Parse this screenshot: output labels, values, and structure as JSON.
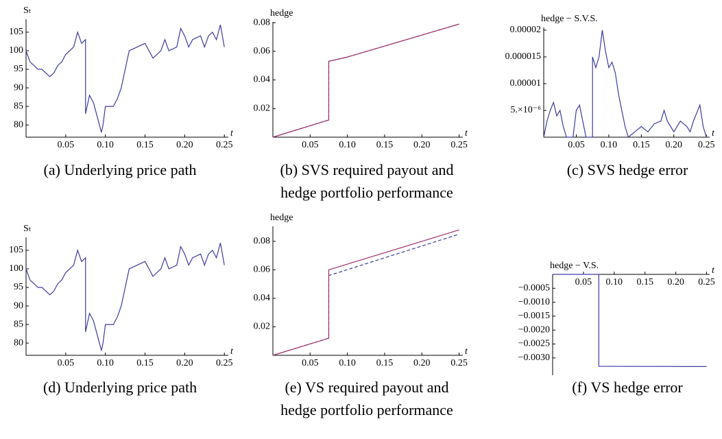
{
  "chart_data": [
    {
      "type": "line",
      "y_label": "Sₜ",
      "x_label": "t",
      "caption": [
        "(a) Underlying price path"
      ],
      "xlim": [
        0,
        0.255
      ],
      "ylim": [
        76.7,
        108.5
      ],
      "xticks": [
        0.05,
        {
          "value": 0.1,
          "label": "0.10"
        },
        0.15,
        {
          "value": 0.2,
          "label": "0.20"
        },
        0.25
      ],
      "yticks": [
        80,
        85,
        90,
        95,
        100,
        105
      ],
      "x": [
        0,
        0.005,
        0.01,
        0.015,
        0.02,
        0.025,
        0.03,
        0.035,
        0.04,
        0.045,
        0.05,
        0.055,
        0.06,
        0.065,
        0.07,
        0.075,
        0.075,
        0.08,
        0.085,
        0.09,
        0.095,
        0.097,
        0.1,
        0.11,
        0.115,
        0.12,
        0.125,
        0.13,
        0.14,
        0.15,
        0.16,
        0.17,
        0.175,
        0.18,
        0.19,
        0.195,
        0.2,
        0.205,
        0.21,
        0.22,
        0.225,
        0.23,
        0.235,
        0.24,
        0.245,
        0.25
      ],
      "series": [
        {
          "color": "#3a3aa0",
          "values": [
            100,
            97,
            96,
            95,
            95,
            94,
            93,
            94,
            96,
            97,
            99,
            100,
            101,
            105,
            102,
            103,
            83,
            88,
            86,
            82,
            78,
            80,
            85,
            85,
            87,
            90,
            95,
            100,
            101,
            102,
            98,
            100,
            103,
            100,
            101,
            106,
            104,
            101,
            103,
            104,
            101,
            104,
            105,
            103,
            107,
            101
          ]
        }
      ]
    },
    {
      "type": "line",
      "y_label": "hedge",
      "x_label": "t",
      "caption": [
        "(b) SVS required payout and",
        "hedge portfolio performance"
      ],
      "xlim": [
        0,
        0.255
      ],
      "ylim": [
        0,
        0.0805
      ],
      "xticks": [
        0.05,
        {
          "value": 0.1,
          "label": "0.10"
        },
        0.15,
        {
          "value": 0.2,
          "label": "0.20"
        },
        0.25
      ],
      "yticks": [
        0.02,
        0.04,
        0.06,
        0.08
      ],
      "x": [
        0,
        0.075,
        0.075,
        0.1,
        0.25
      ],
      "series": [
        {
          "color": "#3a3aa0",
          "style": "dashed",
          "values": [
            0,
            0.012,
            0.053,
            0.056,
            0.079
          ]
        },
        {
          "color": "#a0306a",
          "style": "solid",
          "values": [
            0,
            0.012,
            0.053,
            0.056,
            0.079
          ]
        }
      ]
    },
    {
      "type": "line",
      "y_label": "hedge − S.V.S.",
      "x_label": "t",
      "caption": [
        "(c) SVS hedge error"
      ],
      "xlim": [
        0,
        0.255
      ],
      "ylim": [
        0,
        2.05e-05
      ],
      "xticks": [
        0.05,
        {
          "value": 0.1,
          "label": "0.10"
        },
        0.15,
        {
          "value": 0.2,
          "label": "0.20"
        },
        0.25
      ],
      "yticks": [
        {
          "value": 5e-06,
          "label": "5.×10⁻⁶"
        },
        1e-05,
        1.5e-05,
        2e-05
      ],
      "x": [
        0,
        0.005,
        0.01,
        0.015,
        0.02,
        0.025,
        0.03,
        0.035,
        0.045,
        0.05,
        0.055,
        0.06,
        0.065,
        0.075,
        0.075,
        0.08,
        0.085,
        0.09,
        0.095,
        0.1,
        0.105,
        0.11,
        0.115,
        0.12,
        0.125,
        0.13,
        0.14,
        0.15,
        0.16,
        0.17,
        0.18,
        0.185,
        0.19,
        0.2,
        0.21,
        0.22,
        0.225,
        0.23,
        0.24,
        0.245,
        0.25
      ],
      "series": [
        {
          "color": "#3a3aa0",
          "values": [
            0,
            3e-06,
            5e-06,
            6.5e-06,
            4e-06,
            5e-06,
            2e-06,
            0,
            0,
            5e-06,
            6e-06,
            3e-06,
            0,
            0,
            1.5e-05,
            1.3e-05,
            1.5e-05,
            2e-05,
            1.6e-05,
            1.3e-05,
            1.4e-05,
            1.2e-05,
            8e-06,
            5e-06,
            2e-06,
            0,
            1e-06,
            2e-06,
            1e-06,
            2.5e-06,
            3e-06,
            5e-06,
            3e-06,
            1e-06,
            3e-06,
            2e-06,
            1e-06,
            3e-06,
            6e-06,
            2e-06,
            0
          ]
        }
      ]
    },
    {
      "type": "line",
      "y_label": "Sₜ",
      "x_label": "t",
      "caption": [
        "(d) Underlying price path"
      ],
      "xlim": [
        0,
        0.255
      ],
      "ylim": [
        76.7,
        108.5
      ],
      "xticks": [
        0.05,
        {
          "value": 0.1,
          "label": "0.10"
        },
        0.15,
        {
          "value": 0.2,
          "label": "0.20"
        },
        0.25
      ],
      "yticks": [
        80,
        85,
        90,
        95,
        100,
        105
      ],
      "x": [
        0,
        0.005,
        0.01,
        0.015,
        0.02,
        0.025,
        0.03,
        0.035,
        0.04,
        0.045,
        0.05,
        0.055,
        0.06,
        0.065,
        0.07,
        0.075,
        0.075,
        0.08,
        0.085,
        0.09,
        0.095,
        0.097,
        0.1,
        0.11,
        0.115,
        0.12,
        0.125,
        0.13,
        0.14,
        0.15,
        0.16,
        0.17,
        0.175,
        0.18,
        0.19,
        0.195,
        0.2,
        0.205,
        0.21,
        0.22,
        0.225,
        0.23,
        0.235,
        0.24,
        0.245,
        0.25
      ],
      "series": [
        {
          "color": "#3a3aa0",
          "values": [
            100,
            97,
            96,
            95,
            95,
            94,
            93,
            94,
            96,
            97,
            99,
            100,
            101,
            105,
            102,
            103,
            83,
            88,
            86,
            82,
            78,
            80,
            85,
            85,
            87,
            90,
            95,
            100,
            101,
            102,
            98,
            100,
            103,
            100,
            101,
            106,
            104,
            101,
            103,
            104,
            101,
            104,
            105,
            103,
            107,
            101
          ]
        }
      ]
    },
    {
      "type": "line",
      "y_label": "hedge",
      "x_label": "t",
      "caption": [
        "(e) VS required payout and",
        "hedge portfolio performance"
      ],
      "xlim": [
        0,
        0.255
      ],
      "ylim": [
        0,
        0.0905
      ],
      "xticks": [
        0.05,
        {
          "value": 0.1,
          "label": "0.10"
        },
        0.15,
        {
          "value": 0.2,
          "label": "0.20"
        },
        0.25
      ],
      "yticks": [
        0.02,
        0.04,
        0.06,
        0.08
      ],
      "x": [
        0,
        0.075,
        0.075,
        0.25
      ],
      "series": [
        {
          "color": "#3a3aa0",
          "style": "dashed",
          "values": [
            0,
            0.012,
            0.056,
            0.085
          ]
        },
        {
          "color": "#a0306a",
          "style": "solid",
          "values": [
            0,
            0.012,
            0.06,
            0.088
          ]
        }
      ]
    },
    {
      "type": "line",
      "y_label": "hedge − V.S.",
      "x_label": "t",
      "caption": [
        "(f) VS hedge error"
      ],
      "xlim": [
        0,
        0.255
      ],
      "ylim": [
        -0.00362,
        0
      ],
      "xticks": [
        0.05,
        {
          "value": 0.1,
          "label": "0.10"
        },
        0.15,
        {
          "value": 0.2,
          "label": "0.20"
        },
        0.25
      ],
      "yticks": [
        {
          "value": -0.0005,
          "label": "−0.0005"
        },
        {
          "value": -0.001,
          "label": "−0.0010"
        },
        {
          "value": -0.0015,
          "label": "−0.0015"
        },
        {
          "value": -0.002,
          "label": "−0.0020"
        },
        {
          "value": -0.0025,
          "label": "−0.0025"
        },
        {
          "value": -0.003,
          "label": "−0.0030"
        }
      ],
      "x": [
        0,
        0.075,
        0.075,
        0.25
      ],
      "series": [
        {
          "color": "#3a3aa0",
          "values": [
            0,
            0,
            -0.0033,
            -0.00331
          ]
        }
      ]
    }
  ]
}
